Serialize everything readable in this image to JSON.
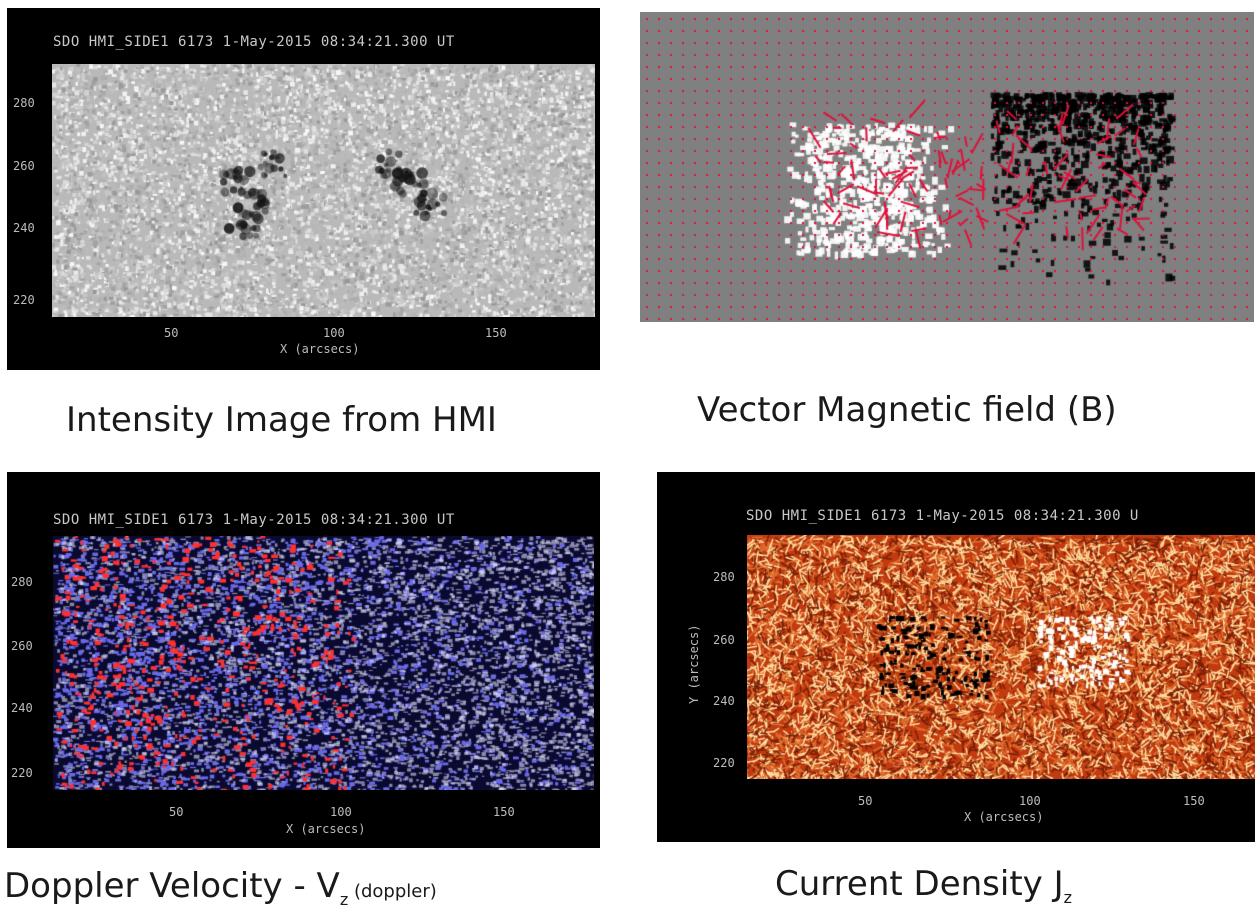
{
  "header_text": "SDO HMI_SIDE1 6173   1-May-2015 08:34:21.300 UT",
  "header_text_cropped": "SDO HMI_SIDE1 6173   1-May-2015 08:34:21.300 U",
  "y_ticks": [
    "280",
    "260",
    "240",
    "220"
  ],
  "x_ticks": [
    "50",
    "100",
    "150"
  ],
  "x_axis_label": "X (arcsecs)",
  "y_axis_label": "Y (arcsecs)",
  "captions": {
    "intensity": "Intensity Image from HMI",
    "vector": "Vector Magnetic field (B)",
    "doppler_main": "Doppler Velocity - V",
    "doppler_sub": "z",
    "doppler_paren": " (doppler)",
    "current_main": "Current Density J",
    "current_sub": "z"
  },
  "colors": {
    "intensity_bg": "#b9b9b9",
    "vector_bg": "#808080",
    "vector_arrow": "#e0103a",
    "doppler_base": "#0a0a30",
    "doppler_mid": "#6a6ae8",
    "doppler_hi": "#ff3030",
    "current_base": "#c23a10",
    "current_hi": "#ffe0a0"
  }
}
